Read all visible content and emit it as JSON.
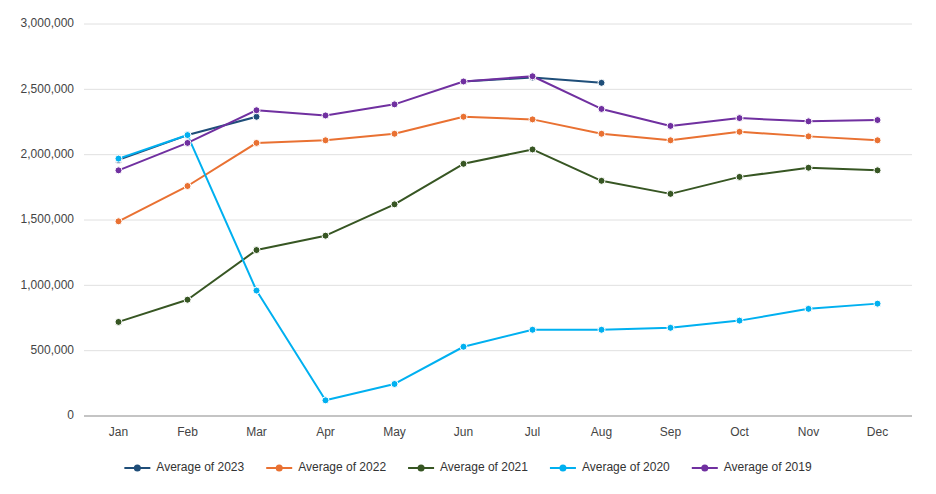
{
  "chart_data": {
    "type": "line",
    "categories": [
      "Jan",
      "Feb",
      "Mar",
      "Apr",
      "May",
      "Jun",
      "Jul",
      "Aug",
      "Sep",
      "Oct",
      "Nov",
      "Dec"
    ],
    "series": [
      {
        "name": "Average of 2023",
        "color": "#1f4e79",
        "values": [
          1960000,
          2150000,
          2290000,
          null,
          null,
          2560000,
          2590000,
          2550000,
          null,
          null,
          null,
          null
        ]
      },
      {
        "name": "Average of 2022",
        "color": "#e97132",
        "values": [
          1490000,
          1760000,
          2090000,
          2110000,
          2160000,
          2290000,
          2270000,
          2160000,
          2110000,
          2175000,
          2140000,
          2110000
        ]
      },
      {
        "name": "Average of 2021",
        "color": "#375623",
        "values": [
          720000,
          890000,
          1270000,
          1380000,
          1620000,
          1930000,
          2040000,
          1800000,
          1700000,
          1830000,
          1900000,
          1880000
        ]
      },
      {
        "name": "Average of 2020",
        "color": "#00b0f0",
        "values": [
          1970000,
          2150000,
          960000,
          120000,
          245000,
          530000,
          660000,
          660000,
          675000,
          730000,
          820000,
          860000
        ]
      },
      {
        "name": "Average of 2019",
        "color": "#7030a0",
        "values": [
          1880000,
          2090000,
          2340000,
          2300000,
          2385000,
          2560000,
          2600000,
          2350000,
          2220000,
          2280000,
          2255000,
          2265000
        ]
      }
    ],
    "ylim": [
      0,
      3000000
    ],
    "yticks": [
      0,
      {
        "value": 500000,
        "label": "500,000"
      },
      {
        "value": 1000000,
        "label": "1,000,000"
      },
      {
        "value": 1500000,
        "label": "1,500,000"
      },
      {
        "value": 2000000,
        "label": "2,000,000"
      },
      {
        "value": 2500000,
        "label": "2,500,000"
      },
      {
        "value": 3000000,
        "label": "3,000,000"
      }
    ],
    "grid": true,
    "legend": "bottom",
    "marker": "circle"
  }
}
